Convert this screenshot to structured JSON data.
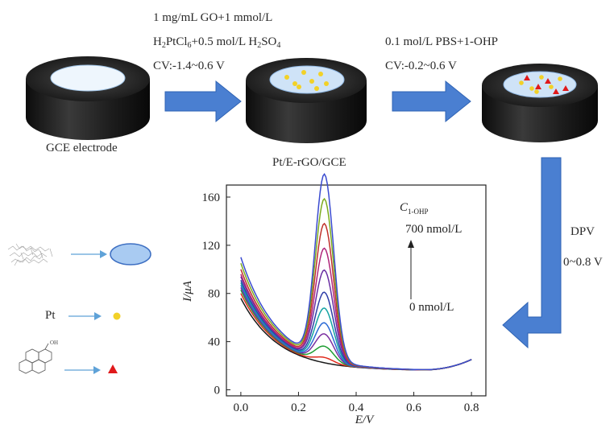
{
  "steps": {
    "step1": {
      "line1": "1 mg/mL GO+1 mmol/L",
      "line2_parts": [
        "H",
        "2",
        "PtCl",
        "6",
        "+0.5 mol/L H",
        "2",
        "SO",
        "4"
      ],
      "line3": "CV:-1.4~0.6 V"
    },
    "step2": {
      "line1": "0.1 mol/L PBS+1-OHP",
      "line2": "CV:-0.2~0.6 V"
    },
    "step3": {
      "line1": "DPV",
      "line2": "0~0.8 V"
    }
  },
  "electrodes": {
    "gce_label": "GCE electrode",
    "pt_label": "Pt/E-rGO/GCE"
  },
  "legend": {
    "pt_label": "Pt"
  },
  "colors": {
    "arrow_blue": "#4a7fd1",
    "electrode_top": "#dfeefd",
    "pt_dot": "#f2d128",
    "ohp_triangle": "#e0191b"
  },
  "chart_data": {
    "type": "line",
    "xlabel": "E/V",
    "ylabel": "I/μA",
    "xlim": [
      -0.05,
      0.85
    ],
    "ylim": [
      -5,
      170
    ],
    "xticks": [
      "0.0",
      "0.2",
      "0.4",
      "0.6",
      "0.8"
    ],
    "yticks": [
      "0",
      "40",
      "80",
      "120",
      "160"
    ],
    "annotation": {
      "var": "C",
      "var_sub": "1-OHP",
      "top": "700 nmol/L",
      "bottom": "0 nmol/L"
    },
    "peak_x": 0.29,
    "series": [
      {
        "color": "#1a1a1a",
        "peak": 0,
        "start": 76
      },
      {
        "color": "#e02a1c",
        "peak": 4,
        "start": 80
      },
      {
        "color": "#1f9e33",
        "peak": 13,
        "start": 83
      },
      {
        "color": "#7b2fa0",
        "peak": 23,
        "start": 85
      },
      {
        "color": "#2b6ad6",
        "peak": 32,
        "start": 87
      },
      {
        "color": "#14a3a3",
        "peak": 44,
        "start": 89
      },
      {
        "color": "#2f3fa8",
        "peak": 57,
        "start": 91
      },
      {
        "color": "#6a2ea2",
        "peak": 75,
        "start": 94
      },
      {
        "color": "#b0257a",
        "peak": 93,
        "start": 96
      },
      {
        "color": "#c0312b",
        "peak": 113,
        "start": 100
      },
      {
        "color": "#7cab1e",
        "peak": 133,
        "start": 105
      },
      {
        "color": "#3a4bd0",
        "peak": 153,
        "start": 110
      }
    ]
  }
}
